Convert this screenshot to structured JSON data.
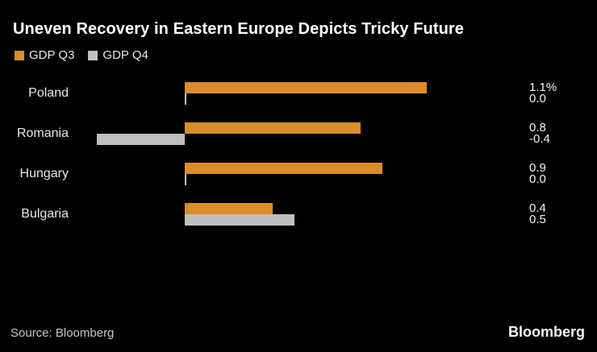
{
  "chart_data": {
    "type": "bar",
    "orientation": "horizontal",
    "title": "Uneven Recovery in Eastern Europe Depicts Tricky Future",
    "unit": "%",
    "categories": [
      "Poland",
      "Romania",
      "Hungary",
      "Bulgaria"
    ],
    "series": [
      {
        "name": "GDP Q3",
        "color": "#DA8D2B",
        "values": [
          1.1,
          0.8,
          0.9,
          0.4
        ],
        "labels": [
          "1.1%",
          "0.8",
          "0.9",
          "0.4"
        ]
      },
      {
        "name": "GDP Q4",
        "color": "#BFBFBF",
        "values": [
          0.0,
          -0.4,
          0.0,
          0.5
        ],
        "labels": [
          "0.0",
          "-0.4",
          "0.0",
          "0.5"
        ]
      }
    ],
    "xlim": [
      -0.45,
      1.9
    ],
    "grid": false,
    "legend_position": "top-left",
    "value_labels_shown": true,
    "background_color": "#000000"
  },
  "legend": {
    "items": [
      {
        "label": "GDP Q3",
        "color": "#DA8D2B"
      },
      {
        "label": "GDP Q4",
        "color": "#BFBFBF"
      }
    ]
  },
  "footer": {
    "source": "Source: Bloomberg",
    "logo": "Bloomberg"
  }
}
